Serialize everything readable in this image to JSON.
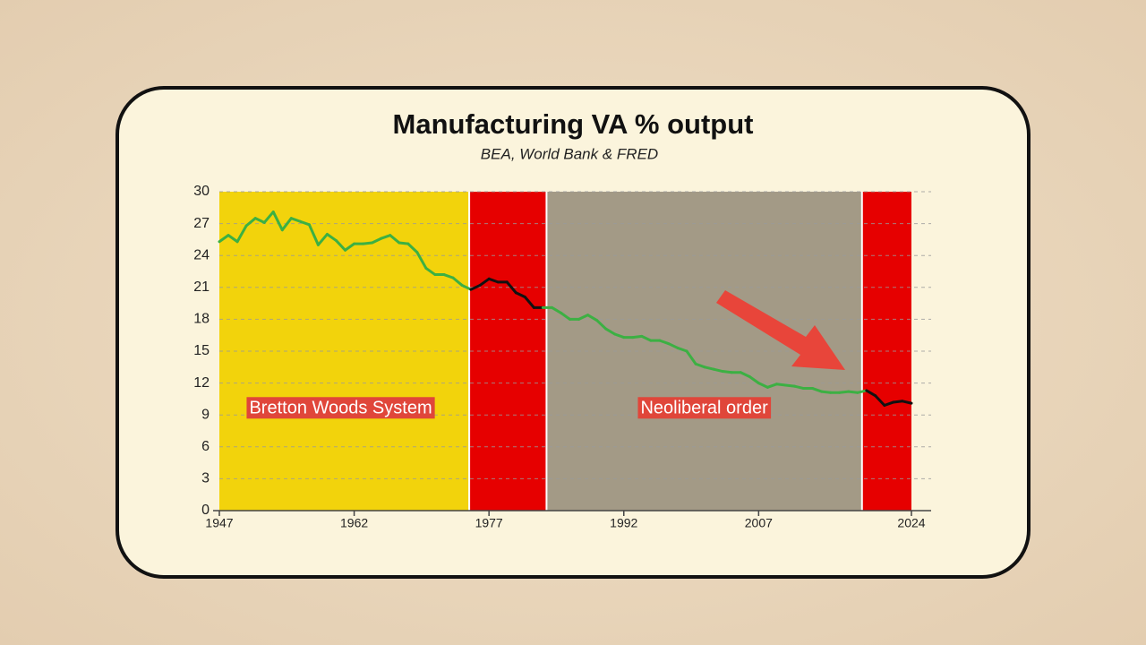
{
  "chart_data": {
    "type": "line",
    "title": "Manufacturing VA % output",
    "subtitle": "BEA, World Bank & FRED",
    "x": [
      1947,
      1948,
      1949,
      1950,
      1951,
      1952,
      1953,
      1954,
      1955,
      1956,
      1957,
      1958,
      1959,
      1960,
      1961,
      1962,
      1963,
      1964,
      1965,
      1966,
      1967,
      1968,
      1969,
      1970,
      1971,
      1972,
      1973,
      1974,
      1975,
      1976,
      1977,
      1978,
      1979,
      1980,
      1981,
      1982,
      1983,
      1984,
      1985,
      1986,
      1987,
      1988,
      1989,
      1990,
      1991,
      1992,
      1993,
      1994,
      1995,
      1996,
      1997,
      1998,
      1999,
      2000,
      2001,
      2002,
      2003,
      2004,
      2005,
      2006,
      2007,
      2008,
      2009,
      2010,
      2011,
      2012,
      2013,
      2014,
      2015,
      2016,
      2017,
      2018,
      2019,
      2020,
      2021,
      2022,
      2023,
      2024
    ],
    "series": [
      {
        "color": "#3cb043",
        "values": [
          25.3,
          25.9,
          25.3,
          26.8,
          27.5,
          27.1,
          28.1,
          26.4,
          27.5,
          27.2,
          26.9,
          25.0,
          26.0,
          25.4,
          24.5,
          25.1,
          25.1,
          25.2,
          25.6,
          25.9,
          25.2,
          25.1,
          24.3,
          22.8,
          22.2,
          22.2,
          21.9,
          21.2,
          20.8,
          21.2,
          21.8,
          21.5,
          21.5,
          20.5,
          20.1,
          19.1,
          19.1,
          19.1,
          18.6,
          18.0,
          18.0,
          18.4,
          17.9,
          17.1,
          16.6,
          16.3,
          16.3,
          16.4,
          16.0,
          16.0,
          15.7,
          15.3,
          15.0,
          13.8,
          13.5,
          13.3,
          13.1,
          13.0,
          13.0,
          12.6,
          12.0,
          11.6,
          11.9,
          11.8,
          11.7,
          11.5,
          11.5,
          11.2,
          11.1,
          11.1,
          11.2,
          11.1,
          11.3,
          10.8,
          9.9,
          10.2,
          10.3,
          10.1
        ]
      }
    ],
    "regions": [
      {
        "start": 1947,
        "end": 1974.8,
        "color": "#f2d30c",
        "label": "Bretton Woods System"
      },
      {
        "start": 1974.8,
        "end": 1983.4,
        "color": "#e60000",
        "line_color": "#111111"
      },
      {
        "start": 1983.4,
        "end": 2018.5,
        "color": "#a39a86",
        "label": "Neoliberal order"
      },
      {
        "start": 2018.5,
        "end": 2024,
        "color": "#e60000",
        "line_color": "#111111"
      }
    ],
    "xlim": [
      1947,
      2024
    ],
    "xticks": [
      1947,
      1962,
      1977,
      1992,
      2007,
      2024
    ],
    "ylim": [
      0,
      30
    ],
    "yticks": [
      0,
      3,
      6,
      9,
      12,
      15,
      18,
      21,
      24,
      27,
      30
    ],
    "grid": true
  }
}
